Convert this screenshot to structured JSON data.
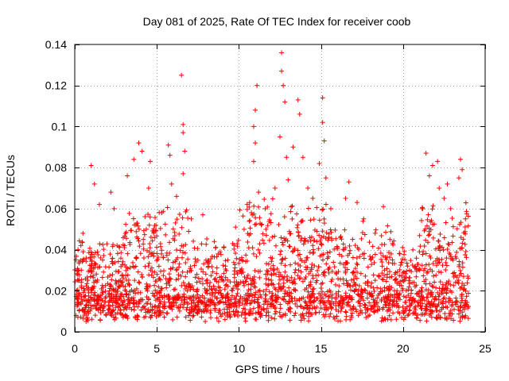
{
  "chart_data": {
    "type": "scatter",
    "title": "Day 081 of 2025, Rate Of TEC Index for receiver coob",
    "xlabel": "GPS time / hours",
    "ylabel": "ROTI / TECUs",
    "xlim": [
      0,
      25
    ],
    "ylim": [
      0,
      0.14
    ],
    "x_ticks": [
      0,
      5,
      10,
      15,
      20,
      25
    ],
    "x_tick_labels": [
      "0",
      "5",
      "10",
      "15",
      "20",
      "25"
    ],
    "y_ticks": [
      0,
      0.02,
      0.04,
      0.06,
      0.08,
      0.1,
      0.12,
      0.14
    ],
    "y_tick_labels": [
      "0",
      "0.02",
      "0.04",
      "0.06",
      "0.08",
      "0.1",
      "0.12",
      "0.14"
    ],
    "grid": true,
    "marker": "+",
    "color": "#ff0000",
    "series": [
      {
        "name": "ROTI",
        "points": [
          [
            1.0,
            0.081
          ],
          [
            0.5,
            0.048
          ],
          [
            0.2,
            0.04
          ],
          [
            1.2,
            0.072
          ],
          [
            1.5,
            0.062
          ],
          [
            2.2,
            0.068
          ],
          [
            2.4,
            0.06
          ],
          [
            3.2,
            0.076
          ],
          [
            3.6,
            0.084
          ],
          [
            3.9,
            0.092
          ],
          [
            4.1,
            0.088
          ],
          [
            4.5,
            0.07
          ],
          [
            4.6,
            0.083
          ],
          [
            5.3,
            0.058
          ],
          [
            5.7,
            0.091
          ],
          [
            5.8,
            0.086
          ],
          [
            5.9,
            0.072
          ],
          [
            6.2,
            0.066
          ],
          [
            6.5,
            0.125
          ],
          [
            6.6,
            0.101
          ],
          [
            6.6,
            0.097
          ],
          [
            6.7,
            0.088
          ],
          [
            6.6,
            0.077
          ],
          [
            7.1,
            0.055
          ],
          [
            7.8,
            0.057
          ],
          [
            8.5,
            0.044
          ],
          [
            9.8,
            0.051
          ],
          [
            10.5,
            0.062
          ],
          [
            10.9,
            0.1
          ],
          [
            11.0,
            0.108
          ],
          [
            11.1,
            0.12
          ],
          [
            11.0,
            0.092
          ],
          [
            10.9,
            0.083
          ],
          [
            11.2,
            0.068
          ],
          [
            11.6,
            0.06
          ],
          [
            12.2,
            0.07
          ],
          [
            12.5,
            0.095
          ],
          [
            12.6,
            0.136
          ],
          [
            12.6,
            0.127
          ],
          [
            12.7,
            0.12
          ],
          [
            12.8,
            0.112
          ],
          [
            12.9,
            0.085
          ],
          [
            13.0,
            0.074
          ],
          [
            13.3,
            0.09
          ],
          [
            13.6,
            0.113
          ],
          [
            13.7,
            0.106
          ],
          [
            13.9,
            0.085
          ],
          [
            14.2,
            0.07
          ],
          [
            14.5,
            0.065
          ],
          [
            14.9,
            0.082
          ],
          [
            15.1,
            0.114
          ],
          [
            15.1,
            0.102
          ],
          [
            15.2,
            0.093
          ],
          [
            15.3,
            0.075
          ],
          [
            15.6,
            0.06
          ],
          [
            16.5,
            0.065
          ],
          [
            16.7,
            0.073
          ],
          [
            17.2,
            0.063
          ],
          [
            17.6,
            0.055
          ],
          [
            18.3,
            0.048
          ],
          [
            18.8,
            0.061
          ],
          [
            19.2,
            0.045
          ],
          [
            19.8,
            0.038
          ],
          [
            20.4,
            0.03
          ],
          [
            21.2,
            0.06
          ],
          [
            21.4,
            0.087
          ],
          [
            21.6,
            0.076
          ],
          [
            21.8,
            0.081
          ],
          [
            22.1,
            0.083
          ],
          [
            22.2,
            0.07
          ],
          [
            22.5,
            0.065
          ],
          [
            22.7,
            0.072
          ],
          [
            22.9,
            0.06
          ],
          [
            23.4,
            0.075
          ],
          [
            23.5,
            0.084
          ],
          [
            23.6,
            0.079
          ],
          [
            23.8,
            0.055
          ]
        ]
      }
    ]
  }
}
